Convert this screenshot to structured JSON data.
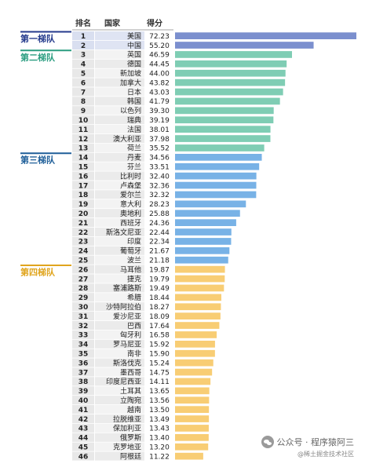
{
  "chart_data": {
    "type": "bar",
    "orientation": "horizontal",
    "headers": {
      "rank": "排名",
      "country": "国家",
      "score": "得分"
    },
    "tiers": [
      {
        "label": "第一梯队",
        "start": 1,
        "end": 2,
        "bar_color": "#7b8fce",
        "label_color": "#243a8c"
      },
      {
        "label": "第二梯队",
        "start": 3,
        "end": 13,
        "bar_color": "#7fcdb4",
        "label_color": "#2a9d80"
      },
      {
        "label": "第三梯队",
        "start": 14,
        "end": 25,
        "bar_color": "#78b2e6",
        "label_color": "#1f5f99"
      },
      {
        "label": "第四梯队",
        "start": 26,
        "end": 46,
        "bar_color": "#f8cd74",
        "label_color": "#e0a51e"
      }
    ],
    "rows": [
      {
        "rank": "1",
        "country": "美国",
        "score": 72.23
      },
      {
        "rank": "2",
        "country": "中国",
        "score": 55.2
      },
      {
        "rank": "3",
        "country": "英国",
        "score": 46.59
      },
      {
        "rank": "4",
        "country": "德国",
        "score": 44.45
      },
      {
        "rank": "5",
        "country": "新加坡",
        "score": 44.0
      },
      {
        "rank": "6",
        "country": "加拿大",
        "score": 43.82
      },
      {
        "rank": "7",
        "country": "日本",
        "score": 43.03
      },
      {
        "rank": "8",
        "country": "韩国",
        "score": 41.79
      },
      {
        "rank": "9",
        "country": "以色列",
        "score": 39.3
      },
      {
        "rank": "10",
        "country": "瑞典",
        "score": 39.19
      },
      {
        "rank": "11",
        "country": "法国",
        "score": 38.01
      },
      {
        "rank": "12",
        "country": "澳大利亚",
        "score": 37.98
      },
      {
        "rank": "13",
        "country": "荷兰",
        "score": 35.52
      },
      {
        "rank": "14",
        "country": "丹麦",
        "score": 34.56
      },
      {
        "rank": "15",
        "country": "芬兰",
        "score": 33.51
      },
      {
        "rank": "16",
        "country": "比利时",
        "score": 32.4
      },
      {
        "rank": "17",
        "country": "卢森堡",
        "score": 32.36
      },
      {
        "rank": "18",
        "country": "爱尔兰",
        "score": 32.32
      },
      {
        "rank": "19",
        "country": "意大利",
        "score": 28.23
      },
      {
        "rank": "20",
        "country": "奥地利",
        "score": 25.88
      },
      {
        "rank": "21",
        "country": "西班牙",
        "score": 24.36
      },
      {
        "rank": "22",
        "country": "斯洛文尼亚",
        "score": 22.44
      },
      {
        "rank": "23",
        "country": "印度",
        "score": 22.34
      },
      {
        "rank": "24",
        "country": "葡萄牙",
        "score": 21.67
      },
      {
        "rank": "25",
        "country": "波兰",
        "score": 21.18
      },
      {
        "rank": "26",
        "country": "马耳他",
        "score": 19.87
      },
      {
        "rank": "27",
        "country": "捷克",
        "score": 19.79
      },
      {
        "rank": "28",
        "country": "塞浦路斯",
        "score": 19.49
      },
      {
        "rank": "29",
        "country": "希腊",
        "score": 18.44
      },
      {
        "rank": "30",
        "country": "沙特阿拉伯",
        "score": 18.27
      },
      {
        "rank": "31",
        "country": "爱沙尼亚",
        "score": 18.09
      },
      {
        "rank": "32",
        "country": "巴西",
        "score": 17.64
      },
      {
        "rank": "33",
        "country": "匈牙利",
        "score": 16.58
      },
      {
        "rank": "34",
        "country": "罗马尼亚",
        "score": 15.92
      },
      {
        "rank": "35",
        "country": "南非",
        "score": 15.9
      },
      {
        "rank": "36",
        "country": "斯洛伐克",
        "score": 15.24
      },
      {
        "rank": "37",
        "country": "墨西哥",
        "score": 14.75
      },
      {
        "rank": "38",
        "country": "印度尼西亚",
        "score": 14.11
      },
      {
        "rank": "39",
        "country": "土耳其",
        "score": 13.65
      },
      {
        "rank": "40",
        "country": "立陶宛",
        "score": 13.56
      },
      {
        "rank": "41",
        "country": "越南",
        "score": 13.5
      },
      {
        "rank": "42",
        "country": "拉脱维亚",
        "score": 13.49
      },
      {
        "rank": "43",
        "country": "保加利亚",
        "score": 13.43
      },
      {
        "rank": "44",
        "country": "俄罗斯",
        "score": 13.4
      },
      {
        "rank": "45",
        "country": "克罗地亚",
        "score": 13.2
      },
      {
        "rank": "46",
        "country": "阿根廷",
        "score": 11.22
      }
    ],
    "xlim": [
      0,
      72.23
    ],
    "grid": false,
    "legend": "none"
  },
  "watermark": {
    "line1": "公众号 · 程序猿阿三",
    "line2": "@稀土掘金技术社区"
  }
}
